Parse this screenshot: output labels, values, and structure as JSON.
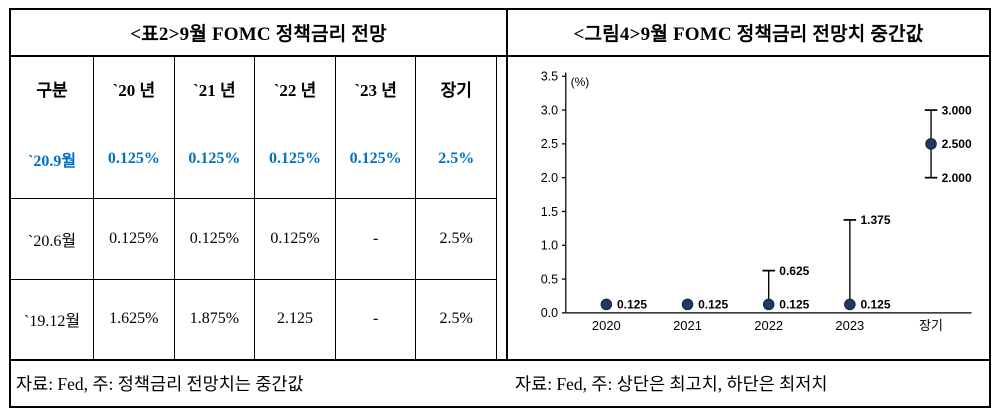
{
  "figure": {
    "left": {
      "title": "<표2>9월 FOMC 정책금리 전망",
      "footnote": "자료: Fed, 주: 정책금리 전망치는 중간값",
      "table": {
        "headers": [
          "구분",
          "`20 년",
          "`21 년",
          "`22 년",
          "`23 년",
          "장기"
        ],
        "rows": [
          {
            "label": "`20.9월",
            "values": [
              "0.125%",
              "0.125%",
              "0.125%",
              "0.125%",
              "2.5%"
            ],
            "highlight": true
          },
          {
            "label": "`20.6월",
            "values": [
              "0.125%",
              "0.125%",
              "0.125%",
              "-",
              "2.5%"
            ],
            "highlight": false
          },
          {
            "label": "`19.12월",
            "values": [
              "1.625%",
              "1.875%",
              "2.125",
              "-",
              "2.5%"
            ],
            "highlight": false
          }
        ],
        "highlight_color": "#0070C0"
      }
    },
    "right": {
      "title": "<그림4>9월 FOMC 정책금리 전망치 중간값",
      "footnote": "자료: Fed, 주: 상단은 최고치, 하단은 최저치"
    }
  },
  "chart_data": {
    "type": "scatter",
    "title": "<그림4>9월 FOMC 정책금리 전망치 중간값",
    "xlabel": "",
    "ylabel": "(%)",
    "ylim": [
      0,
      3.5
    ],
    "ytick_step": 0.5,
    "grid": false,
    "legend": false,
    "marker_color": "#1F3864",
    "whisker_color": "#000000",
    "categories": [
      "2020",
      "2021",
      "2022",
      "2023",
      "장기"
    ],
    "points": [
      {
        "category": "2020",
        "median": 0.125,
        "high": null,
        "low": null,
        "labels": [
          {
            "text": "0.125",
            "at": 0.125
          }
        ]
      },
      {
        "category": "2021",
        "median": 0.125,
        "high": null,
        "low": null,
        "labels": [
          {
            "text": "0.125",
            "at": 0.125
          }
        ]
      },
      {
        "category": "2022",
        "median": 0.125,
        "high": 0.625,
        "low": null,
        "labels": [
          {
            "text": "0.125",
            "at": 0.125
          },
          {
            "text": "0.625",
            "at": 0.625
          }
        ]
      },
      {
        "category": "2023",
        "median": 0.125,
        "high": 1.375,
        "low": null,
        "labels": [
          {
            "text": "0.125",
            "at": 0.125
          },
          {
            "text": "1.375",
            "at": 1.375
          }
        ]
      },
      {
        "category": "장기",
        "median": 2.5,
        "high": 3.0,
        "low": 2.0,
        "labels": [
          {
            "text": "2.500",
            "at": 2.5
          },
          {
            "text": "3.000",
            "at": 3.0
          },
          {
            "text": "2.000",
            "at": 2.0
          }
        ]
      }
    ]
  }
}
